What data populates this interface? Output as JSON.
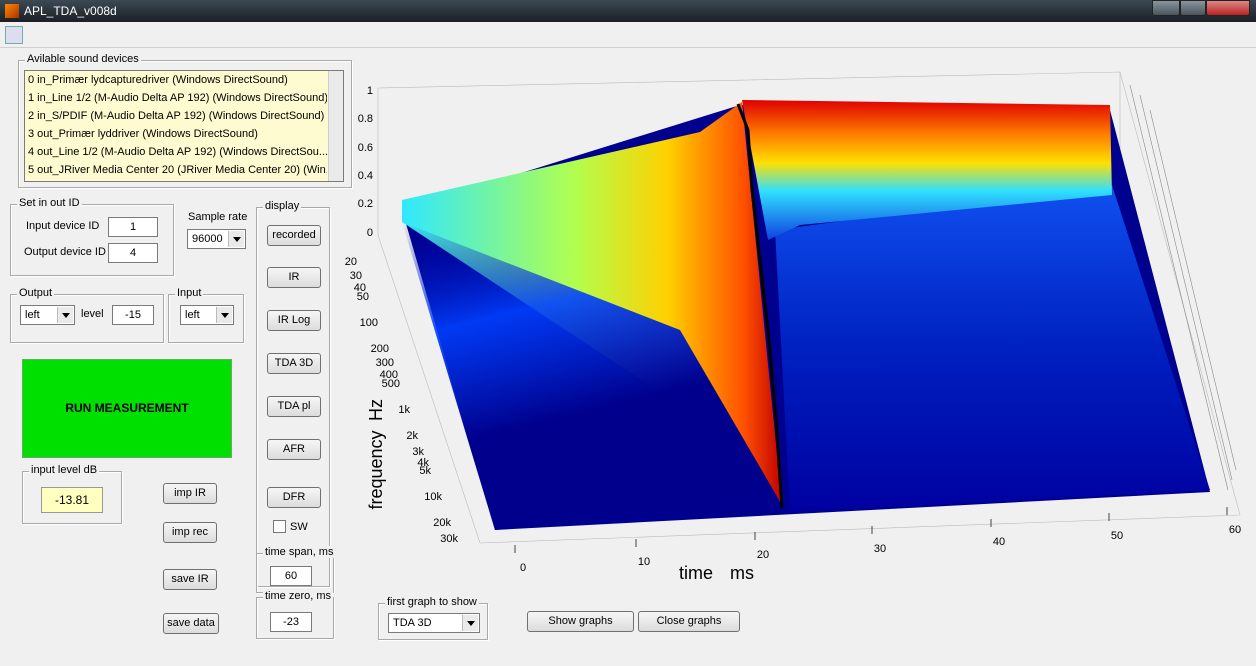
{
  "window": {
    "title": "APL_TDA_v008d"
  },
  "devices": {
    "title": "Avilable sound devices",
    "items": [
      "0 in_Primær lydcapturedriver (Windows DirectSound)",
      "1 in_Line 1/2 (M-Audio Delta AP 192) (Windows DirectSound)",
      "2 in_S/PDIF (M-Audio Delta AP 192) (Windows DirectSound)",
      "3 out_Primær lyddriver (Windows DirectSound)",
      "4 out_Line 1/2 (M-Audio Delta AP 192) (Windows DirectSou...",
      "5 out_JRiver Media Center 20 (JRiver Media Center 20) (Win..."
    ]
  },
  "io": {
    "title": "Set in out ID",
    "input_label": "Input device ID",
    "input_value": "1",
    "output_label": "Output device ID",
    "output_value": "4"
  },
  "sample_rate": {
    "label": "Sample rate",
    "value": "96000"
  },
  "output": {
    "title": "Output",
    "channel": "left",
    "level_label": "level",
    "level": "-15"
  },
  "input": {
    "title": "Input",
    "channel": "left"
  },
  "run_button": "RUN MEASUREMENT",
  "input_level": {
    "title": "input level dB",
    "value": "-13.81"
  },
  "buttons": {
    "imp_ir": "imp IR",
    "imp_rec": "imp rec",
    "save_ir": "save IR",
    "save_data": "save data"
  },
  "display": {
    "title": "display",
    "buttons": [
      "recorded",
      "IR",
      "IR Log",
      "TDA 3D",
      "TDA pl",
      "AFR",
      "DFR"
    ],
    "sw": "SW"
  },
  "time_span": {
    "label": "time span, ms",
    "value": "60"
  },
  "time_zero": {
    "label": "time zero, ms",
    "value": "-23"
  },
  "first_graph": {
    "label": "first graph to show",
    "value": "TDA 3D"
  },
  "show_graphs": "Show graphs",
  "close_graphs": "Close graphs",
  "plot": {
    "z_ticks": [
      "0",
      "0.2",
      "0.4",
      "0.6",
      "0.8",
      "1"
    ],
    "freq_ticks": [
      "20",
      "30",
      "40",
      "50",
      "100",
      "200",
      "300",
      "400",
      "500",
      "1k",
      "2k",
      "3k",
      "4k",
      "5k",
      "10k",
      "20k",
      "30k"
    ],
    "freq_label": "frequency",
    "freq_unit": "Hz",
    "time_ticks": [
      "0",
      "10",
      "20",
      "30",
      "40",
      "50",
      "60"
    ],
    "time_label": "time",
    "time_unit": "ms"
  }
}
